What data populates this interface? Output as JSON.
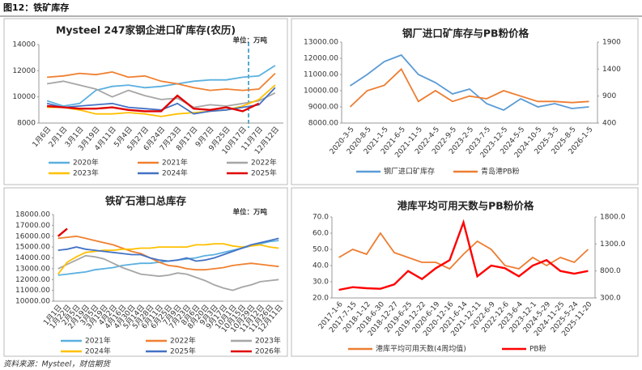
{
  "header": {
    "title": "图12：铁矿库存"
  },
  "footer": {
    "source": "资料来源：Mysteel，财信期货"
  },
  "chart_data": [
    {
      "type": "line",
      "title": "Mysteel 247家钢企进口矿库存(农历)",
      "unit": "单位：万吨",
      "categories": [
        "1月6日",
        "2月1日",
        "3月1日",
        "3月19日",
        "4月11日",
        "5月4日",
        "5月27日",
        "6月24日",
        "7月23日",
        "8月17日",
        "9月7日",
        "9月25日",
        "10月17日",
        "11月7日",
        "12月12日"
      ],
      "ylim": [
        8000,
        14000
      ],
      "yticks": [
        8000,
        10000,
        12000,
        14000
      ],
      "series": [
        {
          "name": "2020年",
          "color": "#5bb0e0",
          "values": [
            9700,
            9300,
            9500,
            10500,
            10800,
            10900,
            10700,
            10800,
            11000,
            11200,
            11300,
            11300,
            11500,
            11600,
            12400
          ]
        },
        {
          "name": "2021年",
          "color": "#f08030",
          "values": [
            11500,
            11600,
            11800,
            11700,
            11900,
            11500,
            11600,
            11200,
            11000,
            10700,
            10500,
            10600,
            10500,
            10600,
            11800
          ]
        },
        {
          "name": "2022年",
          "color": "#a6a6a6",
          "values": [
            11000,
            11200,
            10900,
            10600,
            10000,
            10500,
            10100,
            9800,
            9900,
            9200,
            9400,
            9300,
            9500,
            9700,
            10300
          ]
        },
        {
          "name": "2023年",
          "color": "#ffc000",
          "values": [
            9200,
            9200,
            9000,
            8700,
            8700,
            8800,
            8700,
            8500,
            8700,
            8800,
            8900,
            9000,
            9300,
            9800,
            10900
          ]
        },
        {
          "name": "2024年",
          "color": "#4472c4",
          "values": [
            9500,
            9200,
            9300,
            9400,
            9500,
            9200,
            9100,
            9000,
            9500,
            8700,
            8900,
            9000,
            9200,
            9400,
            10700
          ]
        },
        {
          "name": "2025年",
          "color": "#e00000",
          "values": [
            9300,
            9200,
            9100,
            9100,
            9200,
            9000,
            8900,
            8900,
            10100,
            9100,
            9000,
            9200,
            8900,
            9500,
            null
          ]
        }
      ]
    },
    {
      "type": "line",
      "title": "钢厂进口矿库存与PB粉价格",
      "categories": [
        "2020-3-5",
        "2020-8-5",
        "2021-1-5",
        "2021-6-5",
        "2021-11-5",
        "2022-4-5",
        "2022-9-5",
        "2023-2-5",
        "2023-7-5",
        "2023-12-5",
        "2024-5-5",
        "2024-10-5",
        "2025-3-5",
        "2025-8-5",
        "2026-1-5"
      ],
      "ylim": [
        8000,
        13000
      ],
      "yticks": [
        {
          "value": 8000,
          "label": "8000.00"
        },
        {
          "value": 9000,
          "label": "9000.00"
        },
        {
          "value": 10000,
          "label": "10000.00"
        },
        {
          "value": 11000,
          "label": "11000.00"
        },
        {
          "value": 12000,
          "label": "12000.00"
        },
        {
          "value": 13000,
          "label": "13000.00"
        }
      ],
      "y2lim": [
        400,
        1900
      ],
      "y2ticks": [
        400,
        900,
        1400,
        1900
      ],
      "series": [
        {
          "name": "钢厂进口矿库存",
          "color": "#5b9bd5",
          "values": [
            10300,
            11000,
            11800,
            12200,
            11000,
            10500,
            9800,
            10100,
            9200,
            8800,
            9500,
            9000,
            9200,
            8900,
            9000
          ]
        },
        {
          "name": "青岛港PB粉",
          "color": "#ed7d31",
          "axis": "y2",
          "values": [
            700,
            1000,
            1100,
            1400,
            800,
            1000,
            800,
            900,
            850,
            1000,
            900,
            800,
            800,
            780,
            800
          ]
        }
      ]
    },
    {
      "type": "line",
      "title": "铁矿石港口总库存",
      "unit": "单位：万吨",
      "categories": [
        "1月1日",
        "1月22日",
        "2月5日",
        "2月19日",
        "3月5日",
        "3月19日",
        "4月2日",
        "4月16日",
        "4月30日",
        "5月14日",
        "5月28日",
        "6月11日",
        "6月25日",
        "7月9日",
        "7月23日",
        "8月6日",
        "8月20日",
        "9月3日",
        "9月17日",
        "10月1日",
        "10月15日",
        "10月29日",
        "11月12日",
        "11月26日",
        "12月11日"
      ],
      "ylim": [
        10000,
        18000
      ],
      "yticks": [
        {
          "value": 10000,
          "label": "10000.00"
        },
        {
          "value": 11000,
          "label": "11000.00"
        },
        {
          "value": 12000,
          "label": "12000.00"
        },
        {
          "value": 13000,
          "label": "13000.00"
        },
        {
          "value": 14000,
          "label": "14000.00"
        },
        {
          "value": 15000,
          "label": "15000.00"
        },
        {
          "value": 16000,
          "label": "16000.00"
        },
        {
          "value": 17000,
          "label": "17000.00"
        },
        {
          "value": 18000,
          "label": "18000.00"
        }
      ],
      "series": [
        {
          "name": "2021年",
          "color": "#5bb0e0",
          "values": [
            12400,
            12500,
            12600,
            12700,
            12900,
            13000,
            13100,
            13300,
            13400,
            13500,
            13500,
            13600,
            13700,
            13800,
            13900,
            14000,
            14200,
            14300,
            14500,
            14700,
            14900,
            15100,
            15300,
            15500,
            15600
          ]
        },
        {
          "name": "2022年",
          "color": "#f08030",
          "values": [
            15800,
            15900,
            16000,
            15800,
            15600,
            15400,
            15200,
            14900,
            14600,
            14400,
            14000,
            13600,
            13300,
            13200,
            13000,
            12900,
            12900,
            13000,
            13100,
            13300,
            13400,
            13500,
            13400,
            13300,
            13200
          ]
        },
        {
          "name": "2023年",
          "color": "#a6a6a6",
          "values": [
            13000,
            13400,
            13800,
            14200,
            14100,
            13900,
            13500,
            13100,
            12800,
            12500,
            12400,
            12300,
            12400,
            12600,
            12500,
            12200,
            11900,
            11500,
            11200,
            11000,
            11300,
            11500,
            11800,
            11900,
            12000
          ]
        },
        {
          "name": "2024年",
          "color": "#ffc000",
          "values": [
            12500,
            13600,
            14100,
            14500,
            14600,
            14700,
            14700,
            14800,
            14800,
            14900,
            14900,
            15000,
            15000,
            15000,
            15000,
            15200,
            15200,
            15300,
            15300,
            15100,
            15000,
            15100,
            15200,
            15000,
            14900
          ]
        },
        {
          "name": "2025年",
          "color": "#4472c4",
          "values": [
            14700,
            14800,
            15000,
            14800,
            14700,
            14600,
            14500,
            14400,
            14300,
            14300,
            14000,
            13800,
            13700,
            13800,
            14000,
            13700,
            13800,
            14000,
            14300,
            14600,
            14900,
            15200,
            15400,
            15600,
            15800
          ]
        },
        {
          "name": "2026年",
          "color": "#e00000",
          "values": [
            16000,
            16700,
            null,
            null,
            null,
            null,
            null,
            null,
            null,
            null,
            null,
            null,
            null,
            null,
            null,
            null,
            null,
            null,
            null,
            null,
            null,
            null,
            null,
            null,
            null
          ]
        }
      ]
    },
    {
      "type": "line",
      "title": "港库平均可用天数与PB粉价格",
      "categories": [
        "2017-1-6",
        "2017-7-15",
        "2018-1-12",
        "2018-6-30",
        "2018-12-27",
        "2019-6-25",
        "2019-12-22",
        "2020-6-19",
        "2020-12-16",
        "2021-6-14",
        "2021-12-11",
        "2022-6-9",
        "2022-12-6",
        "2023-6-4",
        "2023-12-1",
        "2024-5-29",
        "2024-11-25",
        "2025-5-24",
        "2025-11-20"
      ],
      "ylim": [
        20,
        70
      ],
      "yticks": [
        {
          "value": 20,
          "label": "20.0"
        },
        {
          "value": 30,
          "label": "30.0"
        },
        {
          "value": 40,
          "label": "40.0"
        },
        {
          "value": 50,
          "label": "50.0"
        },
        {
          "value": 60,
          "label": "60.0"
        },
        {
          "value": 70,
          "label": "70.0"
        }
      ],
      "y2lim": [
        300,
        1800
      ],
      "y2ticks": [
        {
          "value": 300,
          "label": "300.0"
        },
        {
          "value": 800,
          "label": "800.0"
        },
        {
          "value": 1300,
          "label": "1300.0"
        },
        {
          "value": 1800,
          "label": "1800.0"
        }
      ],
      "series": [
        {
          "name": "港库平均可用天数(4周均值)",
          "color": "#ed7d31",
          "values": [
            45,
            50,
            47,
            60,
            48,
            45,
            42,
            42,
            38,
            47,
            55,
            50,
            40,
            38,
            45,
            40,
            45,
            42,
            50
          ]
        },
        {
          "name": "PB粉",
          "color": "#ff0000",
          "axis": "y2",
          "values": [
            450,
            500,
            480,
            470,
            550,
            800,
            650,
            850,
            1000,
            1700,
            700,
            900,
            850,
            700,
            900,
            1000,
            800,
            750,
            800
          ]
        }
      ]
    }
  ]
}
